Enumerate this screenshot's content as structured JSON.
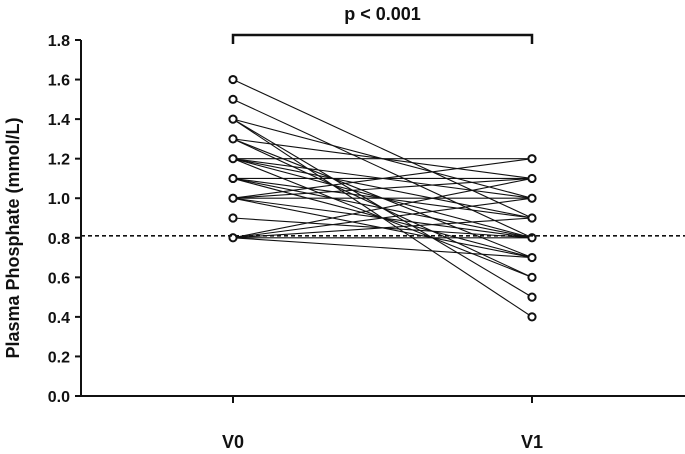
{
  "chart_data": {
    "type": "line",
    "title": "",
    "xlabel": "",
    "ylabel": "Plasma Phosphate (mmol/L)",
    "categories": [
      "V0",
      "V1"
    ],
    "ylim": [
      0.0,
      1.8
    ],
    "yticks": [
      0.0,
      0.2,
      0.4,
      0.6,
      0.8,
      1.0,
      1.2,
      1.4,
      1.6,
      1.8
    ],
    "ytick_labels": [
      "0.0",
      "0.2",
      "0.4",
      "0.6",
      "0.8",
      "1.0",
      "1.2",
      "1.4",
      "1.6",
      "1.8"
    ],
    "reference_line": {
      "y": 0.81,
      "style": "dashed"
    },
    "significance": {
      "label": "p < 0.001",
      "between": [
        "V0",
        "V1"
      ]
    },
    "grid": false,
    "legend": "none",
    "series": [
      {
        "values": [
          1.6,
          0.9
        ]
      },
      {
        "values": [
          1.5,
          0.8
        ]
      },
      {
        "values": [
          1.4,
          0.4
        ]
      },
      {
        "values": [
          1.4,
          1.0
        ]
      },
      {
        "values": [
          1.4,
          0.5
        ]
      },
      {
        "values": [
          1.3,
          1.1
        ]
      },
      {
        "values": [
          1.3,
          0.6
        ]
      },
      {
        "values": [
          1.3,
          0.7
        ]
      },
      {
        "values": [
          1.2,
          1.2
        ]
      },
      {
        "values": [
          1.2,
          1.0
        ]
      },
      {
        "values": [
          1.2,
          0.9
        ]
      },
      {
        "values": [
          1.2,
          0.8
        ]
      },
      {
        "values": [
          1.2,
          0.6
        ]
      },
      {
        "values": [
          1.1,
          1.1
        ]
      },
      {
        "values": [
          1.1,
          0.8
        ]
      },
      {
        "values": [
          1.1,
          0.9
        ]
      },
      {
        "values": [
          1.1,
          0.7
        ]
      },
      {
        "values": [
          1.0,
          1.2
        ]
      },
      {
        "values": [
          1.0,
          1.1
        ]
      },
      {
        "values": [
          1.0,
          1.0
        ]
      },
      {
        "values": [
          1.0,
          0.8
        ]
      },
      {
        "values": [
          1.0,
          0.7
        ]
      },
      {
        "values": [
          0.9,
          0.8
        ]
      },
      {
        "values": [
          0.8,
          1.1
        ]
      },
      {
        "values": [
          0.8,
          1.0
        ]
      },
      {
        "values": [
          0.8,
          0.9
        ]
      },
      {
        "values": [
          0.8,
          0.8
        ]
      },
      {
        "values": [
          0.8,
          0.7
        ]
      }
    ]
  }
}
